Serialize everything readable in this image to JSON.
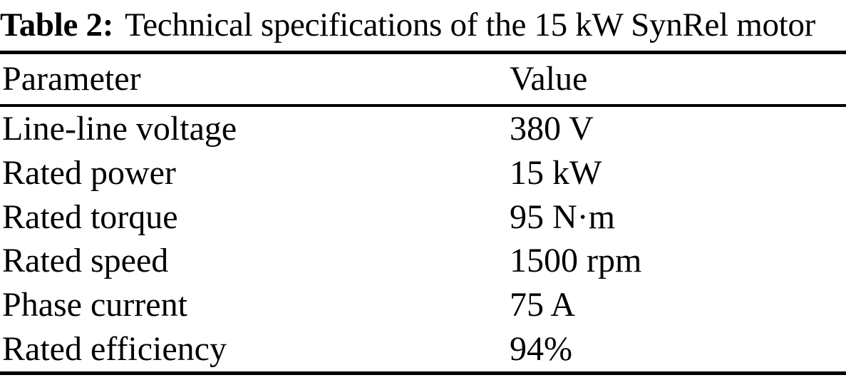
{
  "caption": {
    "label": "Table 2:",
    "text": "Technical specifications of the 15 kW SynRel motor"
  },
  "columns": [
    "Parameter",
    "Value"
  ],
  "rows": [
    {
      "parameter": "Line-line voltage",
      "value": "380 V"
    },
    {
      "parameter": "Rated power",
      "value": "15 kW"
    },
    {
      "parameter": "Rated torque",
      "value": "95 N·m"
    },
    {
      "parameter": "Rated speed",
      "value": "1500 rpm"
    },
    {
      "parameter": "Phase current",
      "value": "75 A"
    },
    {
      "parameter": "Rated efficiency",
      "value": "94%"
    }
  ],
  "colors": {
    "background": "#ffffff",
    "text": "#000000",
    "rule": "#000000"
  }
}
